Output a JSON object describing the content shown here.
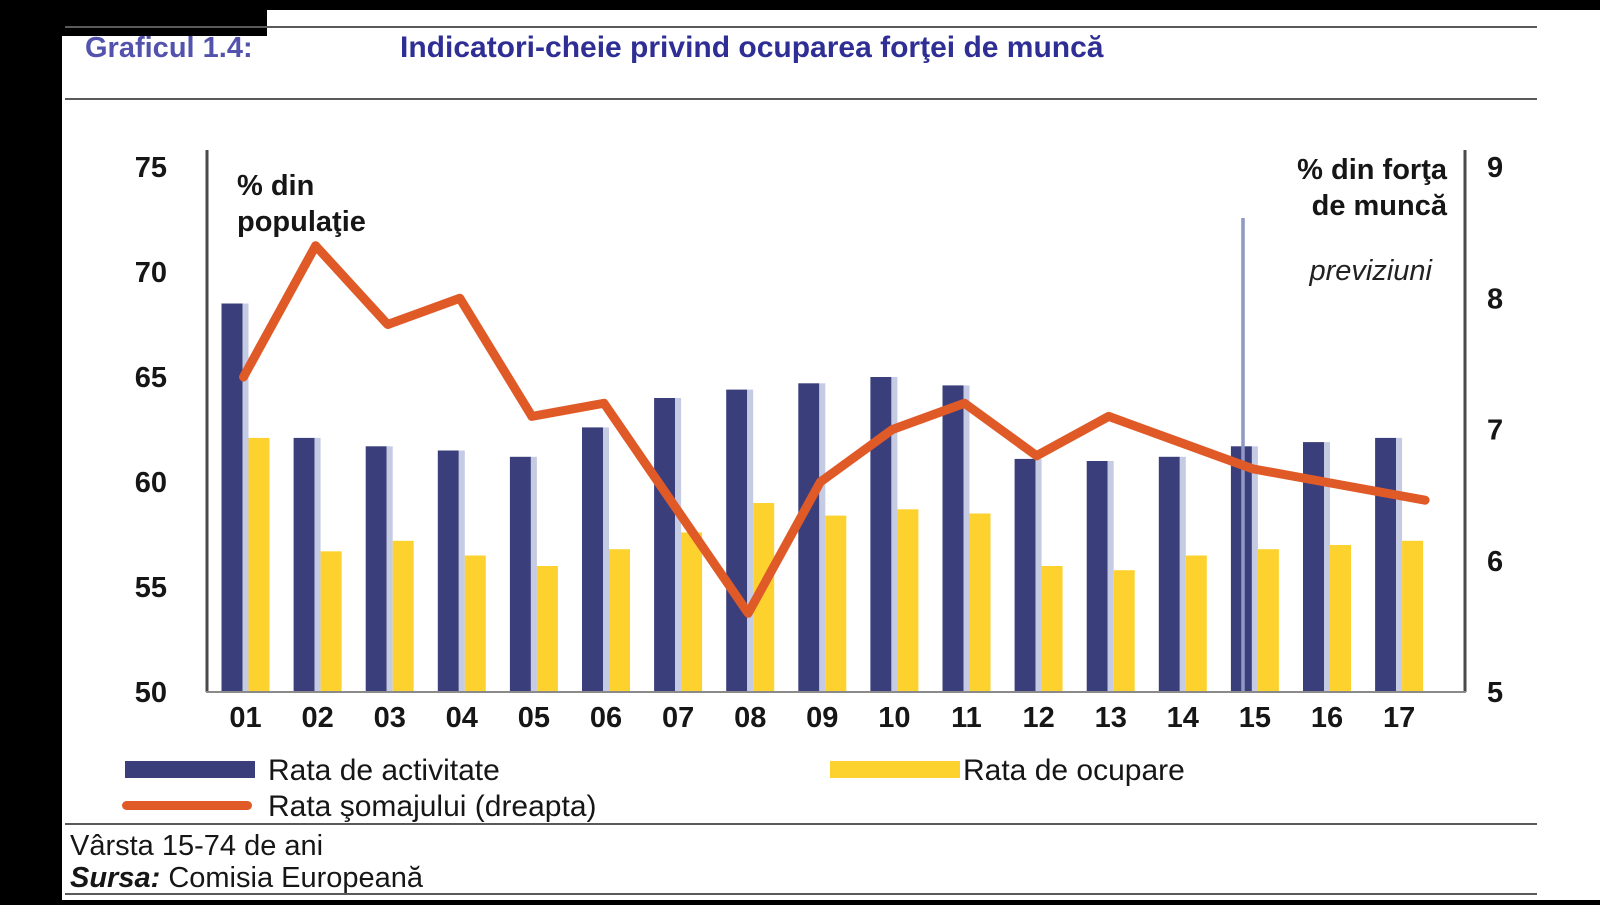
{
  "header": {
    "label": "Graficul 1.4:",
    "title": "Indicatori-cheie privind ocuparea forţei de muncă"
  },
  "chart_data": {
    "type": "bar",
    "categories": [
      "01",
      "02",
      "03",
      "04",
      "05",
      "06",
      "07",
      "08",
      "09",
      "10",
      "11",
      "12",
      "13",
      "14",
      "15",
      "16",
      "17"
    ],
    "series": [
      {
        "name": "Rata de activitate",
        "type": "bar",
        "axis": "left",
        "color": "#3a3f7c",
        "values": [
          68.5,
          62.1,
          61.7,
          61.5,
          61.2,
          62.6,
          64.0,
          64.4,
          64.7,
          65.0,
          64.6,
          61.1,
          61.0,
          61.2,
          61.7,
          61.9,
          62.1
        ]
      },
      {
        "name": "Rata de ocupare",
        "type": "bar",
        "axis": "left",
        "color": "#fdd22f",
        "values": [
          62.1,
          56.7,
          57.2,
          56.5,
          56.0,
          56.8,
          57.6,
          59.0,
          58.4,
          58.7,
          58.5,
          56.0,
          55.8,
          56.5,
          56.8,
          57.0,
          57.2
        ]
      },
      {
        "name": "Rata şomajului (dreapta)",
        "type": "line",
        "axis": "right",
        "color": "#e05a28",
        "values": [
          7.4,
          8.4,
          7.8,
          8.0,
          7.1,
          7.2,
          6.4,
          5.6,
          6.6,
          7.0,
          7.2,
          6.8,
          7.1,
          6.9,
          6.7,
          6.6,
          6.5
        ]
      }
    ],
    "left_axis": {
      "label": "% din\npopulaţie",
      "min": 50,
      "max": 75,
      "ticks": [
        75,
        70,
        65,
        60,
        55,
        50
      ]
    },
    "right_axis": {
      "label": "% din forţa\nde muncă",
      "min": 5,
      "max": 9,
      "ticks": [
        9,
        8,
        7,
        6,
        5
      ]
    },
    "forecast": {
      "label": "previziuni",
      "divider_after_category": "14"
    },
    "grid": false,
    "legend_position": "bottom"
  },
  "footer": {
    "note": "Vârsta 15-74 de ani",
    "source_label": "Sursa:",
    "source": "Comisia Europeană"
  }
}
